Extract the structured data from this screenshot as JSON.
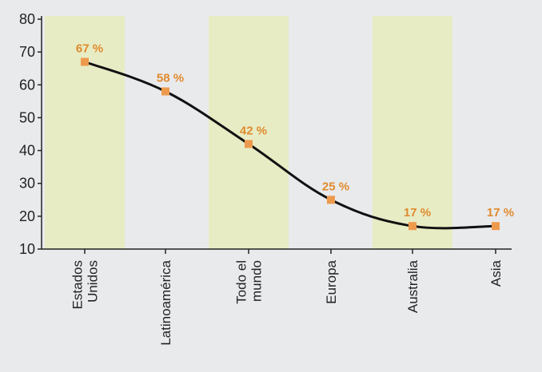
{
  "colors": {
    "background": "#e9eaec",
    "band": "#e7ecc4",
    "line": "#111111",
    "marker": "#ee9a4d",
    "label": "#e08a2e"
  },
  "chart_data": {
    "type": "line",
    "categories": [
      [
        "Estados",
        "Unidos"
      ],
      [
        "Latinoamérica"
      ],
      [
        "Todo el",
        "mundo"
      ],
      [
        "Europa"
      ],
      [
        "Australia"
      ],
      [
        "Asia"
      ]
    ],
    "values": [
      67,
      58,
      42,
      25,
      17,
      17
    ],
    "value_labels": [
      "67 %",
      "58 %",
      "42 %",
      "25 %",
      "17 %",
      "17 %"
    ],
    "yticks": [
      10,
      20,
      30,
      40,
      50,
      60,
      70,
      80
    ],
    "ylim": [
      10,
      80
    ],
    "highlighted_categories": [
      0,
      2,
      4
    ],
    "title": "",
    "xlabel": "",
    "ylabel": "",
    "grid": false,
    "legend": "none"
  }
}
